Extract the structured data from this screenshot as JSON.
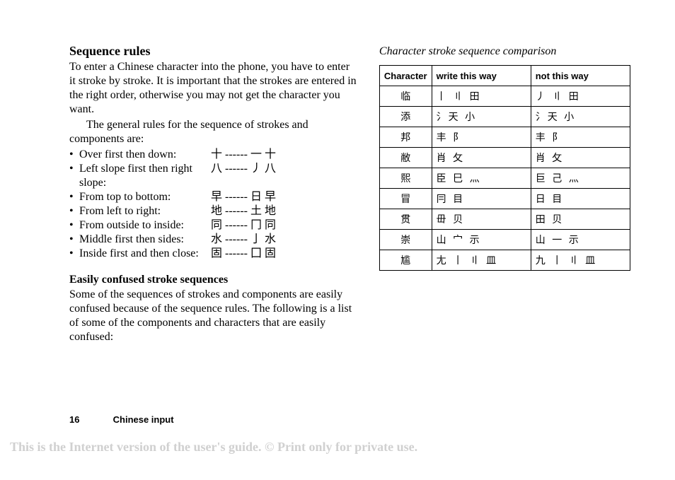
{
  "left": {
    "heading": "Sequence rules",
    "p1": "To enter a Chinese character into the phone, you have to enter it stroke by stroke. It is important that the strokes are entered in the right order, otherwise you may not get the character you want.",
    "p2": "The general rules for the sequence of strokes and components are:",
    "rules": [
      {
        "label": "Over first then down:",
        "example": "十 ------ 一 十"
      },
      {
        "label": "Left slope first then right slope:",
        "example": "八 ------ 丿 八"
      },
      {
        "label": "From top to bottom:",
        "example": "早 ------ 日 早"
      },
      {
        "label": "From left to right:",
        "example": "地 ------ 土 地"
      },
      {
        "label": "From outside to inside:",
        "example": "同 ------ 冂 同"
      },
      {
        "label": "Middle first then sides:",
        "example": "水 ------ 亅 水"
      },
      {
        "label": "Inside first and then close:",
        "example": "固 ------ 囗 固"
      }
    ],
    "sub_heading": "Easily confused stroke sequences",
    "p3": "Some of the sequences of strokes and components are easily confused because of the sequence rules. The following is a list of some of the components and characters that are easily confused:"
  },
  "right": {
    "heading": "Character stroke sequence comparison",
    "headers": [
      "Character",
      "write this way",
      "not this way"
    ],
    "rows": [
      {
        "char": "临",
        "write": "丨 〢 田",
        "not": "丿 〢 田"
      },
      {
        "char": "添",
        "write": "氵天 小",
        "not": "氵天 小"
      },
      {
        "char": "邦",
        "write": "丰 阝",
        "not": "丰 阝"
      },
      {
        "char": "敝",
        "write": "肖 攵",
        "not": "肖 攵"
      },
      {
        "char": "熙",
        "write": "臣 巳 灬",
        "not": "巨 己 灬"
      },
      {
        "char": "冒",
        "write": "冃 目",
        "not": "日 目"
      },
      {
        "char": "贯",
        "write": "毌 贝",
        "not": "田 贝"
      },
      {
        "char": "崇",
        "write": "山 宀 示",
        "not": "山 一 示"
      },
      {
        "char": "尴",
        "write": "尢 丨 〢 皿",
        "not": "九 丨 〢 皿"
      }
    ]
  },
  "footer": {
    "page_number": "16",
    "section": "Chinese input"
  },
  "watermark": "This is the Internet version of the user's guide. © Print only for private use.",
  "style": {
    "text_color": "#000000",
    "watermark_color": "#d0d0d0",
    "bg_color": "#ffffff",
    "body_font": "Times New Roman",
    "footer_font": "Arial"
  }
}
